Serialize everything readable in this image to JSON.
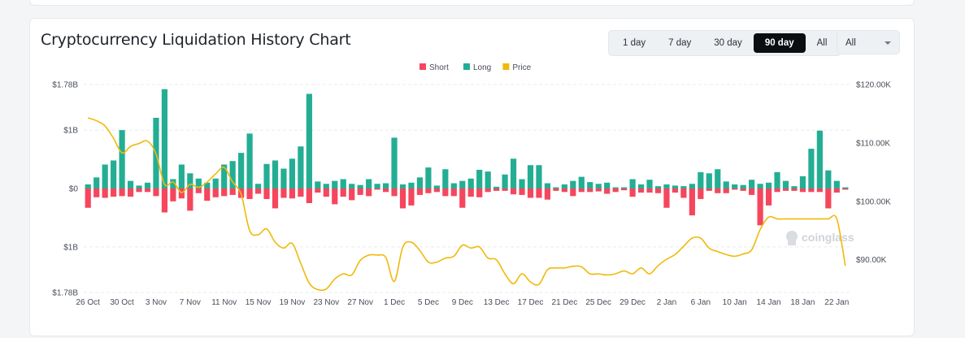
{
  "title": "Cryptocurrency Liquidation History Chart",
  "range_options": [
    "1 day",
    "7 day",
    "30 day",
    "90 day",
    "All"
  ],
  "range_selected": "90 day",
  "coin_select": {
    "value": "All"
  },
  "watermark": "coinglass",
  "colors": {
    "short": "#f6465d",
    "long": "#23ae94",
    "price": "#f0b90b"
  },
  "chart_data": {
    "type": "bar",
    "legend": {
      "position": "top-center",
      "entries": [
        "Short",
        "Long",
        "Price"
      ]
    },
    "grid": true,
    "left_axis": {
      "ticks": [
        "$1.78B",
        "$1B",
        "$0",
        "$1B",
        "$1.78B"
      ],
      "range": [
        -1.78,
        1.78
      ],
      "unit": "B USD"
    },
    "right_axis": {
      "ticks": [
        "$120.00K",
        "$110.00K",
        "$100.00K",
        "$90.00K"
      ],
      "range": [
        84.4,
        120
      ],
      "unit": "K USD"
    },
    "x_tick_labels": [
      "26 Oct",
      "30 Oct",
      "3 Nov",
      "7 Nov",
      "11 Nov",
      "15 Nov",
      "19 Nov",
      "23 Nov",
      "27 Nov",
      "1 Dec",
      "5 Dec",
      "9 Dec",
      "13 Dec",
      "17 Dec",
      "21 Dec",
      "25 Dec",
      "29 Dec",
      "2 Jan",
      "6 Jan",
      "10 Jan",
      "14 Jan",
      "18 Jan",
      "22 Jan"
    ],
    "categories": [
      "26 Oct",
      "27 Oct",
      "28 Oct",
      "29 Oct",
      "30 Oct",
      "31 Oct",
      "1 Nov",
      "2 Nov",
      "3 Nov",
      "4 Nov",
      "5 Nov",
      "6 Nov",
      "7 Nov",
      "8 Nov",
      "9 Nov",
      "10 Nov",
      "11 Nov",
      "12 Nov",
      "13 Nov",
      "14 Nov",
      "15 Nov",
      "16 Nov",
      "17 Nov",
      "18 Nov",
      "19 Nov",
      "20 Nov",
      "21 Nov",
      "22 Nov",
      "23 Nov",
      "24 Nov",
      "25 Nov",
      "26 Nov",
      "27 Nov",
      "28 Nov",
      "29 Nov",
      "30 Nov",
      "1 Dec",
      "2 Dec",
      "3 Dec",
      "4 Dec",
      "5 Dec",
      "6 Dec",
      "7 Dec",
      "8 Dec",
      "9 Dec",
      "10 Dec",
      "11 Dec",
      "12 Dec",
      "13 Dec",
      "14 Dec",
      "15 Dec",
      "16 Dec",
      "17 Dec",
      "18 Dec",
      "19 Dec",
      "20 Dec",
      "21 Dec",
      "22 Dec",
      "23 Dec",
      "24 Dec",
      "25 Dec",
      "26 Dec",
      "27 Dec",
      "28 Dec",
      "29 Dec",
      "30 Dec",
      "31 Dec",
      "1 Jan",
      "2 Jan",
      "3 Jan",
      "4 Jan",
      "5 Jan",
      "6 Jan",
      "7 Jan",
      "8 Jan",
      "9 Jan",
      "10 Jan",
      "11 Jan",
      "12 Jan",
      "13 Jan",
      "14 Jan",
      "15 Jan",
      "16 Jan",
      "17 Jan",
      "18 Jan",
      "19 Jan",
      "20 Jan",
      "21 Jan",
      "22 Jan",
      "23 Jan"
    ],
    "series": [
      {
        "name": "Long",
        "axis": "left",
        "values": [
          0.07,
          0.19,
          0.41,
          0.48,
          1.0,
          0.13,
          0.05,
          0.1,
          1.21,
          1.7,
          0.16,
          0.41,
          0.26,
          0.17,
          0.1,
          0.17,
          0.41,
          0.47,
          0.61,
          0.94,
          0.08,
          0.42,
          0.48,
          0.34,
          0.51,
          0.72,
          1.62,
          0.12,
          0.08,
          0.13,
          0.16,
          0.08,
          0.06,
          0.16,
          0.08,
          0.09,
          0.87,
          0.07,
          0.1,
          0.19,
          0.36,
          0.05,
          0.33,
          0.09,
          0.13,
          0.17,
          0.32,
          0.29,
          0.03,
          0.24,
          0.51,
          0.16,
          0.4,
          0.4,
          0.09,
          0.02,
          0.07,
          0.13,
          0.2,
          0.11,
          0.08,
          0.1,
          0.02,
          0.02,
          0.16,
          0.07,
          0.15,
          0.04,
          0.07,
          0.05,
          0.04,
          0.08,
          0.28,
          0.26,
          0.33,
          0.12,
          0.07,
          0.06,
          0.15,
          0.08,
          0.1,
          0.28,
          0.13,
          0.04,
          0.21,
          0.68,
          0.99,
          0.31,
          0.13,
          0.02
        ]
      },
      {
        "name": "Short",
        "axis": "left",
        "values": [
          0.33,
          0.15,
          0.16,
          0.14,
          0.13,
          0.14,
          0.06,
          0.06,
          0.13,
          0.41,
          0.22,
          0.17,
          0.38,
          0.08,
          0.21,
          0.15,
          0.13,
          0.11,
          0.16,
          0.18,
          0.09,
          0.18,
          0.34,
          0.16,
          0.17,
          0.14,
          0.25,
          0.07,
          0.14,
          0.27,
          0.14,
          0.2,
          0.11,
          0.13,
          0.02,
          0.06,
          0.13,
          0.34,
          0.29,
          0.11,
          0.08,
          0.06,
          0.13,
          0.13,
          0.33,
          0.14,
          0.15,
          0.06,
          0.04,
          0.04,
          0.1,
          0.11,
          0.16,
          0.16,
          0.19,
          0.04,
          0.06,
          0.13,
          0.06,
          0.06,
          0.05,
          0.09,
          0.06,
          0.03,
          0.14,
          0.07,
          0.07,
          0.08,
          0.33,
          0.07,
          0.16,
          0.46,
          0.18,
          0.04,
          0.08,
          0.08,
          0.02,
          0.04,
          0.11,
          0.63,
          0.29,
          0.06,
          0.04,
          0.04,
          0.06,
          0.06,
          0.06,
          0.34,
          0.07,
          0.02
        ]
      },
      {
        "name": "Price",
        "axis": "right",
        "type": "line",
        "values": [
          114.3,
          113.8,
          112.9,
          110.8,
          108.3,
          109.4,
          109.9,
          110.3,
          108.1,
          102.9,
          103.3,
          101.5,
          102.9,
          102.4,
          103.3,
          104.7,
          105.8,
          103.3,
          101.2,
          95.0,
          94.3,
          95.3,
          93.0,
          92.0,
          92.8,
          89.4,
          86.0,
          84.9,
          85.0,
          86.7,
          87.6,
          87.4,
          89.9,
          90.8,
          90.8,
          90.4,
          86.3,
          92.2,
          93.0,
          91.6,
          89.6,
          89.6,
          90.3,
          90.6,
          92.5,
          92.0,
          92.2,
          90.3,
          90.0,
          87.6,
          85.9,
          87.6,
          86.2,
          85.8,
          88.3,
          88.6,
          88.6,
          88.9,
          88.8,
          87.6,
          87.6,
          87.4,
          87.6,
          88.1,
          87.6,
          88.6,
          87.6,
          89.0,
          90.1,
          90.9,
          92.3,
          93.7,
          93.7,
          92.0,
          91.4,
          90.9,
          90.6,
          91.0,
          91.7,
          95.2,
          97.3,
          97.0,
          97.0,
          97.0,
          97.0,
          97.0,
          97.0,
          97.0,
          97.0,
          89.0
        ]
      }
    ]
  }
}
